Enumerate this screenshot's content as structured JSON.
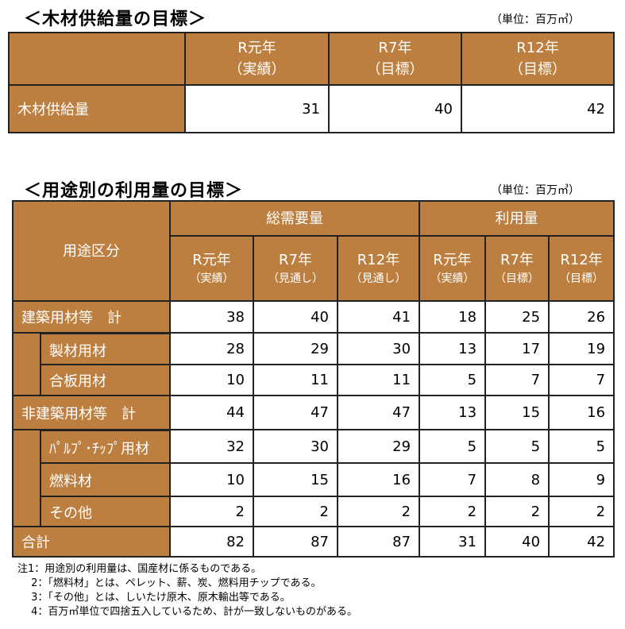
{
  "supply": {
    "title": "＜木材供給量の目標＞",
    "unit": "（単位：百万㎥）",
    "headers": [
      {
        "year": "R元年",
        "note": "（実績）"
      },
      {
        "year": "R7年",
        "note": "（目標）"
      },
      {
        "year": "R12年",
        "note": "（目標）"
      }
    ],
    "row": {
      "label": "木材供給量",
      "values": [
        "31",
        "40",
        "42"
      ]
    }
  },
  "usage": {
    "title": "＜用途別の利用量の目標＞",
    "unit": "（単位：百万㎥）",
    "category_header": "用途区分",
    "group_demand": "総需要量",
    "group_use": "利用量",
    "headers": [
      {
        "year": "R元年",
        "note": "（実績）"
      },
      {
        "year": "R7年",
        "note": "（見通し）"
      },
      {
        "year": "R12年",
        "note": "（見通し）"
      },
      {
        "year": "R元年",
        "note": "（実績）"
      },
      {
        "year": "R7年",
        "note": "（目標）"
      },
      {
        "year": "R12年",
        "note": "（目標）"
      }
    ],
    "rows": [
      {
        "label": "建築用材等　計",
        "values": [
          "38",
          "40",
          "41",
          "18",
          "25",
          "26"
        ]
      },
      {
        "label": "製材用材",
        "values": [
          "28",
          "29",
          "30",
          "13",
          "17",
          "19"
        ]
      },
      {
        "label": "合板用材",
        "values": [
          "10",
          "11",
          "11",
          "5",
          "7",
          "7"
        ]
      },
      {
        "label": "非建築用材等　計",
        "values": [
          "44",
          "47",
          "47",
          "13",
          "15",
          "16"
        ]
      },
      {
        "label": "ﾊﾟﾙﾌﾟ･ﾁｯﾌﾟ用材",
        "values": [
          "32",
          "30",
          "29",
          "5",
          "5",
          "5"
        ]
      },
      {
        "label": "燃料材",
        "values": [
          "10",
          "15",
          "16",
          "7",
          "8",
          "9"
        ]
      },
      {
        "label": "その他",
        "values": [
          "2",
          "2",
          "2",
          "2",
          "2",
          "2"
        ]
      },
      {
        "label": "合計",
        "values": [
          "82",
          "87",
          "87",
          "31",
          "40",
          "42"
        ]
      }
    ]
  },
  "notes": [
    "注1：用途別の利用量は、国産材に係るものである。",
    "　 2：「燃料材」とは、ペレット、薪、炭、燃料用チップである。",
    "　 3：「その他」とは、しいたけ原木、原木輸出等である。",
    "　 4：百万㎥単位で四捨五入しているため、計が一致しないものがある。"
  ],
  "colors": {
    "header_brown": "#BD7F40"
  }
}
